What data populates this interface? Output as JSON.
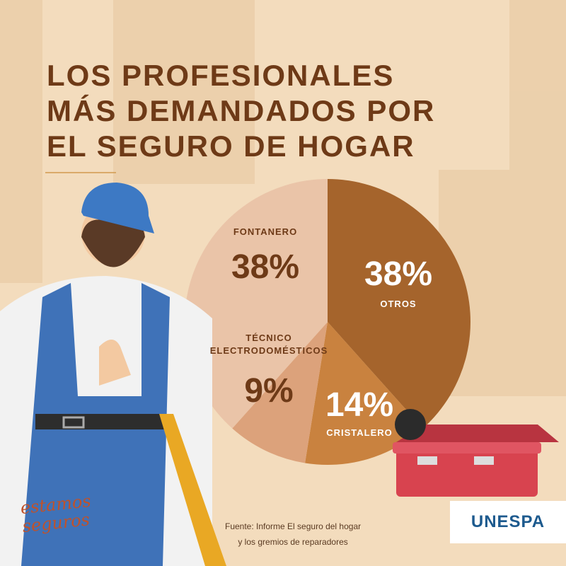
{
  "chart_data": {
    "type": "pie",
    "title": [
      "LOS PROFESIONALES",
      "MÁS DEMANDADOS POR",
      "EL SEGURO DE HOGAR"
    ],
    "categories": [
      "OTROS",
      "CRISTALERO",
      "TÉCNICO ELECTRODOMÉSTICOS",
      "FONTANERO"
    ],
    "values": [
      38,
      14,
      9,
      38
    ],
    "value_labels": [
      "38%",
      "14%",
      "9%",
      "38%"
    ],
    "colors": [
      "#a5642c",
      "#c9823f",
      "#dca27b",
      "#eac4a8"
    ]
  },
  "source": [
    "Fuente: Informe El seguro del hogar",
    "y los gremios de reparadores"
  ],
  "slogan": [
    "estamos",
    "seguros"
  ],
  "logo": "UNESPA"
}
